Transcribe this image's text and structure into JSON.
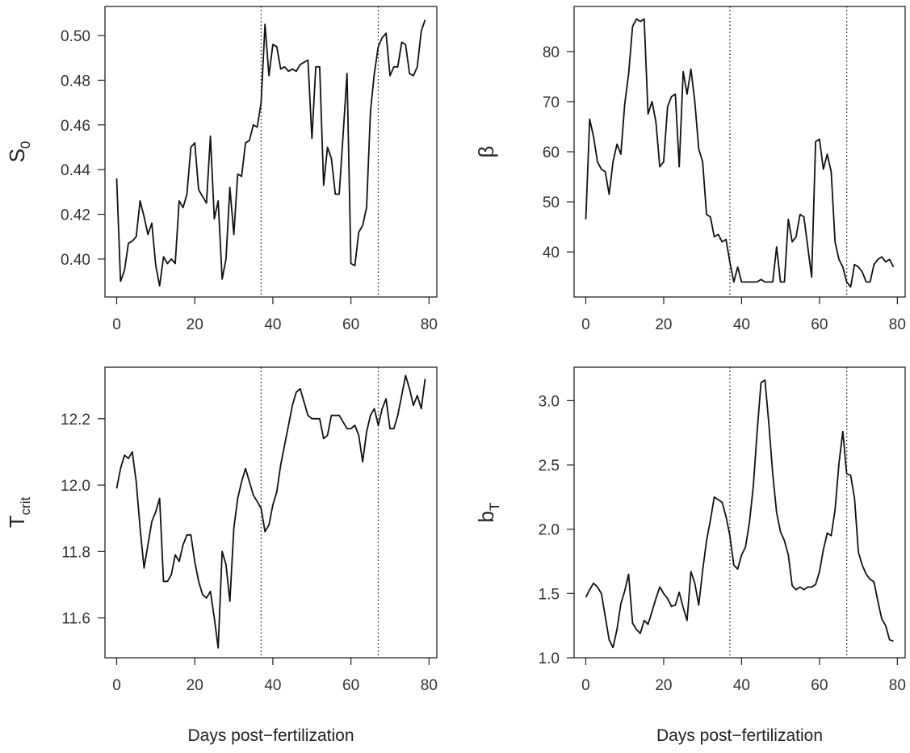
{
  "xlabel": "Days post−fertilization",
  "chart_data": [
    {
      "type": "line",
      "ylabel_main": "S",
      "ylabel_sub": "0",
      "xlim": [
        -3,
        82
      ],
      "ylim": [
        0.383,
        0.513
      ],
      "xticks": [
        0,
        20,
        40,
        60,
        80
      ],
      "xtick_labels": [
        "0",
        "20",
        "40",
        "60",
        "80"
      ],
      "yticks": [
        0.4,
        0.42,
        0.44,
        0.46,
        0.48,
        0.5
      ],
      "ytick_labels": [
        "0.40",
        "0.42",
        "0.44",
        "0.46",
        "0.48",
        "0.50"
      ],
      "vlines": [
        37,
        67
      ],
      "x": [
        0,
        1,
        2,
        3,
        4,
        5,
        6,
        7,
        8,
        9,
        10,
        11,
        12,
        13,
        14,
        15,
        16,
        17,
        18,
        19,
        20,
        21,
        22,
        23,
        24,
        25,
        26,
        27,
        28,
        29,
        30,
        31,
        32,
        33,
        34,
        35,
        36,
        37,
        38,
        39,
        40,
        41,
        42,
        43,
        44,
        45,
        46,
        47,
        48,
        49,
        50,
        51,
        52,
        53,
        54,
        55,
        56,
        57,
        58,
        59,
        60,
        61,
        62,
        63,
        64,
        65,
        66,
        67,
        68,
        69,
        70,
        71,
        72,
        73,
        74,
        75,
        76,
        77,
        78,
        79
      ],
      "y": [
        0.436,
        0.39,
        0.395,
        0.407,
        0.408,
        0.41,
        0.426,
        0.419,
        0.411,
        0.416,
        0.397,
        0.388,
        0.401,
        0.398,
        0.4,
        0.398,
        0.426,
        0.423,
        0.429,
        0.45,
        0.452,
        0.431,
        0.428,
        0.425,
        0.455,
        0.418,
        0.426,
        0.391,
        0.4,
        0.432,
        0.411,
        0.438,
        0.437,
        0.452,
        0.453,
        0.46,
        0.459,
        0.47,
        0.505,
        0.482,
        0.496,
        0.495,
        0.485,
        0.486,
        0.484,
        0.485,
        0.484,
        0.487,
        0.488,
        0.489,
        0.454,
        0.486,
        0.486,
        0.433,
        0.45,
        0.445,
        0.429,
        0.429,
        0.456,
        0.483,
        0.398,
        0.397,
        0.412,
        0.415,
        0.423,
        0.466,
        0.483,
        0.495,
        0.499,
        0.501,
        0.482,
        0.486,
        0.486,
        0.497,
        0.496,
        0.483,
        0.482,
        0.486,
        0.502,
        0.507
      ]
    },
    {
      "type": "line",
      "ylabel_main": "β",
      "ylabel_sub": "",
      "xlim": [
        -3,
        82
      ],
      "ylim": [
        31,
        89
      ],
      "xticks": [
        0,
        20,
        40,
        60,
        80
      ],
      "xtick_labels": [
        "0",
        "20",
        "40",
        "60",
        "80"
      ],
      "yticks": [
        40,
        50,
        60,
        70,
        80
      ],
      "ytick_labels": [
        "40",
        "50",
        "60",
        "70",
        "80"
      ],
      "vlines": [
        37,
        67
      ],
      "x": [
        0,
        1,
        2,
        3,
        4,
        5,
        6,
        7,
        8,
        9,
        10,
        11,
        12,
        13,
        14,
        15,
        16,
        17,
        18,
        19,
        20,
        21,
        22,
        23,
        24,
        25,
        26,
        27,
        28,
        29,
        30,
        31,
        32,
        33,
        34,
        35,
        36,
        37,
        38,
        39,
        40,
        41,
        42,
        43,
        44,
        45,
        46,
        47,
        48,
        49,
        50,
        51,
        52,
        53,
        54,
        55,
        56,
        57,
        58,
        59,
        60,
        61,
        62,
        63,
        64,
        65,
        66,
        67,
        68,
        69,
        70,
        71,
        72,
        73,
        74,
        75,
        76,
        77,
        78,
        79
      ],
      "y": [
        46.5,
        66.5,
        63.0,
        58.0,
        56.5,
        56.0,
        51.5,
        58.0,
        61.5,
        59.5,
        69.5,
        75.5,
        85.0,
        86.5,
        86.0,
        86.5,
        67.5,
        70.0,
        66.0,
        57.0,
        58.0,
        69.0,
        71.0,
        71.5,
        57.0,
        76.0,
        71.5,
        76.5,
        70.0,
        60.5,
        58.0,
        47.5,
        47.0,
        43.0,
        43.5,
        42.0,
        42.5,
        38.0,
        34.0,
        37.0,
        34.0,
        34.0,
        34.0,
        34.0,
        34.0,
        34.5,
        34.0,
        34.0,
        34.0,
        41.0,
        34.0,
        34.0,
        46.5,
        42.0,
        43.0,
        47.5,
        47.0,
        41.0,
        35.0,
        62.0,
        62.5,
        56.5,
        59.5,
        56.0,
        42.0,
        38.5,
        37.0,
        34.0,
        33.0,
        37.5,
        37.0,
        36.0,
        34.0,
        34.0,
        37.5,
        38.5,
        39.0,
        38.0,
        38.5,
        37.0
      ]
    },
    {
      "type": "line",
      "ylabel_main": "T",
      "ylabel_sub": "crit",
      "xlim": [
        -3,
        82
      ],
      "ylim": [
        11.48,
        12.355
      ],
      "xticks": [
        0,
        20,
        40,
        60,
        80
      ],
      "xtick_labels": [
        "0",
        "20",
        "40",
        "60",
        "80"
      ],
      "yticks": [
        11.6,
        11.8,
        12.0,
        12.2
      ],
      "ytick_labels": [
        "11.6",
        "11.8",
        "12.0",
        "12.2"
      ],
      "vlines": [
        37,
        67
      ],
      "x": [
        0,
        1,
        2,
        3,
        4,
        5,
        6,
        7,
        8,
        9,
        10,
        11,
        12,
        13,
        14,
        15,
        16,
        17,
        18,
        19,
        20,
        21,
        22,
        23,
        24,
        25,
        26,
        27,
        28,
        29,
        30,
        31,
        32,
        33,
        34,
        35,
        36,
        37,
        38,
        39,
        40,
        41,
        42,
        43,
        44,
        45,
        46,
        47,
        48,
        49,
        50,
        51,
        52,
        53,
        54,
        55,
        56,
        57,
        58,
        59,
        60,
        61,
        62,
        63,
        64,
        65,
        66,
        67,
        68,
        69,
        70,
        71,
        72,
        73,
        74,
        75,
        76,
        77,
        78,
        79
      ],
      "y": [
        11.99,
        12.05,
        12.09,
        12.08,
        12.1,
        12.01,
        11.87,
        11.75,
        11.82,
        11.89,
        11.92,
        11.96,
        11.71,
        11.71,
        11.73,
        11.79,
        11.77,
        11.82,
        11.85,
        11.85,
        11.77,
        11.71,
        11.67,
        11.66,
        11.68,
        11.6,
        11.51,
        11.8,
        11.76,
        11.65,
        11.87,
        11.96,
        12.01,
        12.05,
        12.01,
        11.97,
        11.95,
        11.93,
        11.86,
        11.88,
        11.94,
        11.98,
        12.06,
        12.12,
        12.18,
        12.24,
        12.28,
        12.29,
        12.25,
        12.21,
        12.2,
        12.2,
        12.2,
        12.14,
        12.15,
        12.21,
        12.21,
        12.21,
        12.19,
        12.17,
        12.17,
        12.18,
        12.15,
        12.07,
        12.16,
        12.21,
        12.23,
        12.18,
        12.23,
        12.26,
        12.17,
        12.17,
        12.21,
        12.27,
        12.33,
        12.29,
        12.24,
        12.27,
        12.23,
        12.32
      ]
    },
    {
      "type": "line",
      "ylabel_main": "b",
      "ylabel_sub": "T",
      "xlim": [
        -3,
        82
      ],
      "ylim": [
        1.0,
        3.26
      ],
      "xticks": [
        0,
        20,
        40,
        60,
        80
      ],
      "xtick_labels": [
        "0",
        "20",
        "40",
        "60",
        "80"
      ],
      "yticks": [
        1.0,
        1.5,
        2.0,
        2.5,
        3.0
      ],
      "ytick_labels": [
        "1.0",
        "1.5",
        "2.0",
        "2.5",
        "3.0"
      ],
      "vlines": [
        37,
        67
      ],
      "x": [
        0,
        1,
        2,
        3,
        4,
        5,
        6,
        7,
        8,
        9,
        10,
        11,
        12,
        13,
        14,
        15,
        16,
        17,
        18,
        19,
        20,
        21,
        22,
        23,
        24,
        25,
        26,
        27,
        28,
        29,
        30,
        31,
        32,
        33,
        34,
        35,
        36,
        37,
        38,
        39,
        40,
        41,
        42,
        43,
        44,
        45,
        46,
        47,
        48,
        49,
        50,
        51,
        52,
        53,
        54,
        55,
        56,
        57,
        58,
        59,
        60,
        61,
        62,
        63,
        64,
        65,
        66,
        67,
        68,
        69,
        70,
        71,
        72,
        73,
        74,
        75,
        76,
        77,
        78,
        79
      ],
      "y": [
        1.47,
        1.53,
        1.58,
        1.55,
        1.5,
        1.32,
        1.14,
        1.08,
        1.22,
        1.42,
        1.52,
        1.65,
        1.27,
        1.22,
        1.19,
        1.29,
        1.26,
        1.36,
        1.46,
        1.55,
        1.5,
        1.46,
        1.4,
        1.41,
        1.51,
        1.39,
        1.29,
        1.67,
        1.58,
        1.41,
        1.68,
        1.91,
        2.07,
        2.25,
        2.23,
        2.21,
        2.1,
        1.95,
        1.72,
        1.69,
        1.8,
        1.86,
        2.05,
        2.33,
        2.76,
        3.14,
        3.16,
        2.82,
        2.43,
        2.13,
        1.98,
        1.91,
        1.8,
        1.56,
        1.53,
        1.55,
        1.53,
        1.55,
        1.55,
        1.57,
        1.67,
        1.84,
        1.97,
        1.95,
        2.15,
        2.51,
        2.76,
        2.43,
        2.42,
        2.24,
        1.82,
        1.72,
        1.65,
        1.61,
        1.59,
        1.44,
        1.3,
        1.25,
        1.14,
        1.13
      ]
    }
  ]
}
